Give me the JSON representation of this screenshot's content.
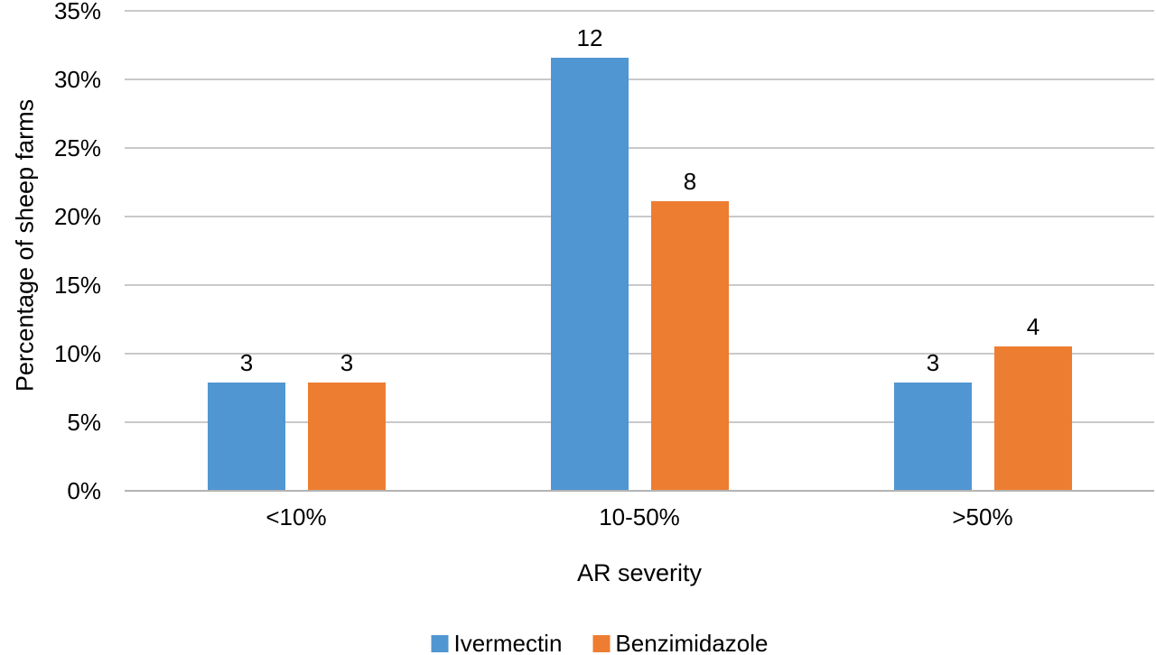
{
  "chart_data": {
    "type": "bar",
    "title": "",
    "xlabel": "AR severity",
    "ylabel": "Percentage of sheep farms",
    "categories": [
      "<10%",
      "10-50%",
      ">50%"
    ],
    "series": [
      {
        "name": "Ivermectin",
        "color": "#5096D2",
        "counts": [
          3,
          12,
          3
        ],
        "percent_values": [
          7.9,
          31.6,
          7.9
        ]
      },
      {
        "name": "Benzimidazole",
        "color": "#ED7D31",
        "counts": [
          3,
          8,
          4
        ],
        "percent_values": [
          7.9,
          21.1,
          10.5
        ]
      }
    ],
    "bar_labels_note": "numbers above bars are farm counts",
    "y_ticks": [
      "0%",
      "5%",
      "10%",
      "15%",
      "20%",
      "25%",
      "30%",
      "35%"
    ],
    "ylim": [
      0,
      35
    ],
    "grid": true,
    "gridline_color": "#c9c9c9",
    "legend_position": "bottom"
  }
}
